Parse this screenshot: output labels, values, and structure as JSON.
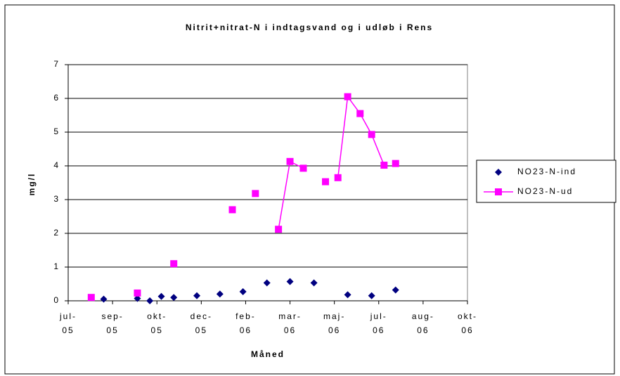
{
  "chart_data": {
    "type": "scatter",
    "title": "Nitrit+nitrat-N i indtagsvand og i udløb i Rens",
    "x_label": "Måned",
    "y_label": "mg/l",
    "xlim": [
      0,
      450
    ],
    "ylim": [
      0,
      7
    ],
    "xticks": [
      {
        "value": 0,
        "label": "jul-05"
      },
      {
        "value": 50,
        "label": "sep-05"
      },
      {
        "value": 100,
        "label": "okt-05"
      },
      {
        "value": 150,
        "label": "dec-05"
      },
      {
        "value": 200,
        "label": "feb-06"
      },
      {
        "value": 250,
        "label": "mar-06"
      },
      {
        "value": 300,
        "label": "maj-06"
      },
      {
        "value": 350,
        "label": "jul-06"
      },
      {
        "value": 400,
        "label": "aug-06"
      },
      {
        "value": 450,
        "label": "okt-06"
      }
    ],
    "yticks": [
      0,
      1,
      2,
      3,
      4,
      5,
      6,
      7
    ],
    "grid": true,
    "legend": "right",
    "series": [
      {
        "name": "NO23-N-ind",
        "color": "#000080",
        "marker": "diamond",
        "line": false,
        "x": [
          40,
          78,
          92,
          105,
          119,
          145,
          171,
          197,
          224,
          250,
          277,
          315,
          342,
          369
        ],
        "values": [
          0.05,
          0.07,
          0.0,
          0.13,
          0.1,
          0.15,
          0.2,
          0.27,
          0.53,
          0.57,
          0.53,
          0.18,
          0.15,
          0.32
        ]
      },
      {
        "name": "NO23-N-ud",
        "color": "#ff00ff",
        "marker": "square",
        "line": true,
        "x": [
          26,
          null,
          78,
          null,
          119,
          null,
          185,
          null,
          211,
          null,
          237,
          250,
          265,
          null,
          290,
          null,
          304,
          315,
          329,
          342,
          356,
          null,
          369
        ],
        "values": [
          0.1,
          null,
          0.23,
          null,
          1.1,
          null,
          2.7,
          null,
          3.18,
          null,
          2.12,
          4.13,
          3.93,
          null,
          3.53,
          null,
          3.65,
          6.05,
          5.55,
          4.93,
          4.02,
          null,
          4.07
        ]
      }
    ]
  }
}
